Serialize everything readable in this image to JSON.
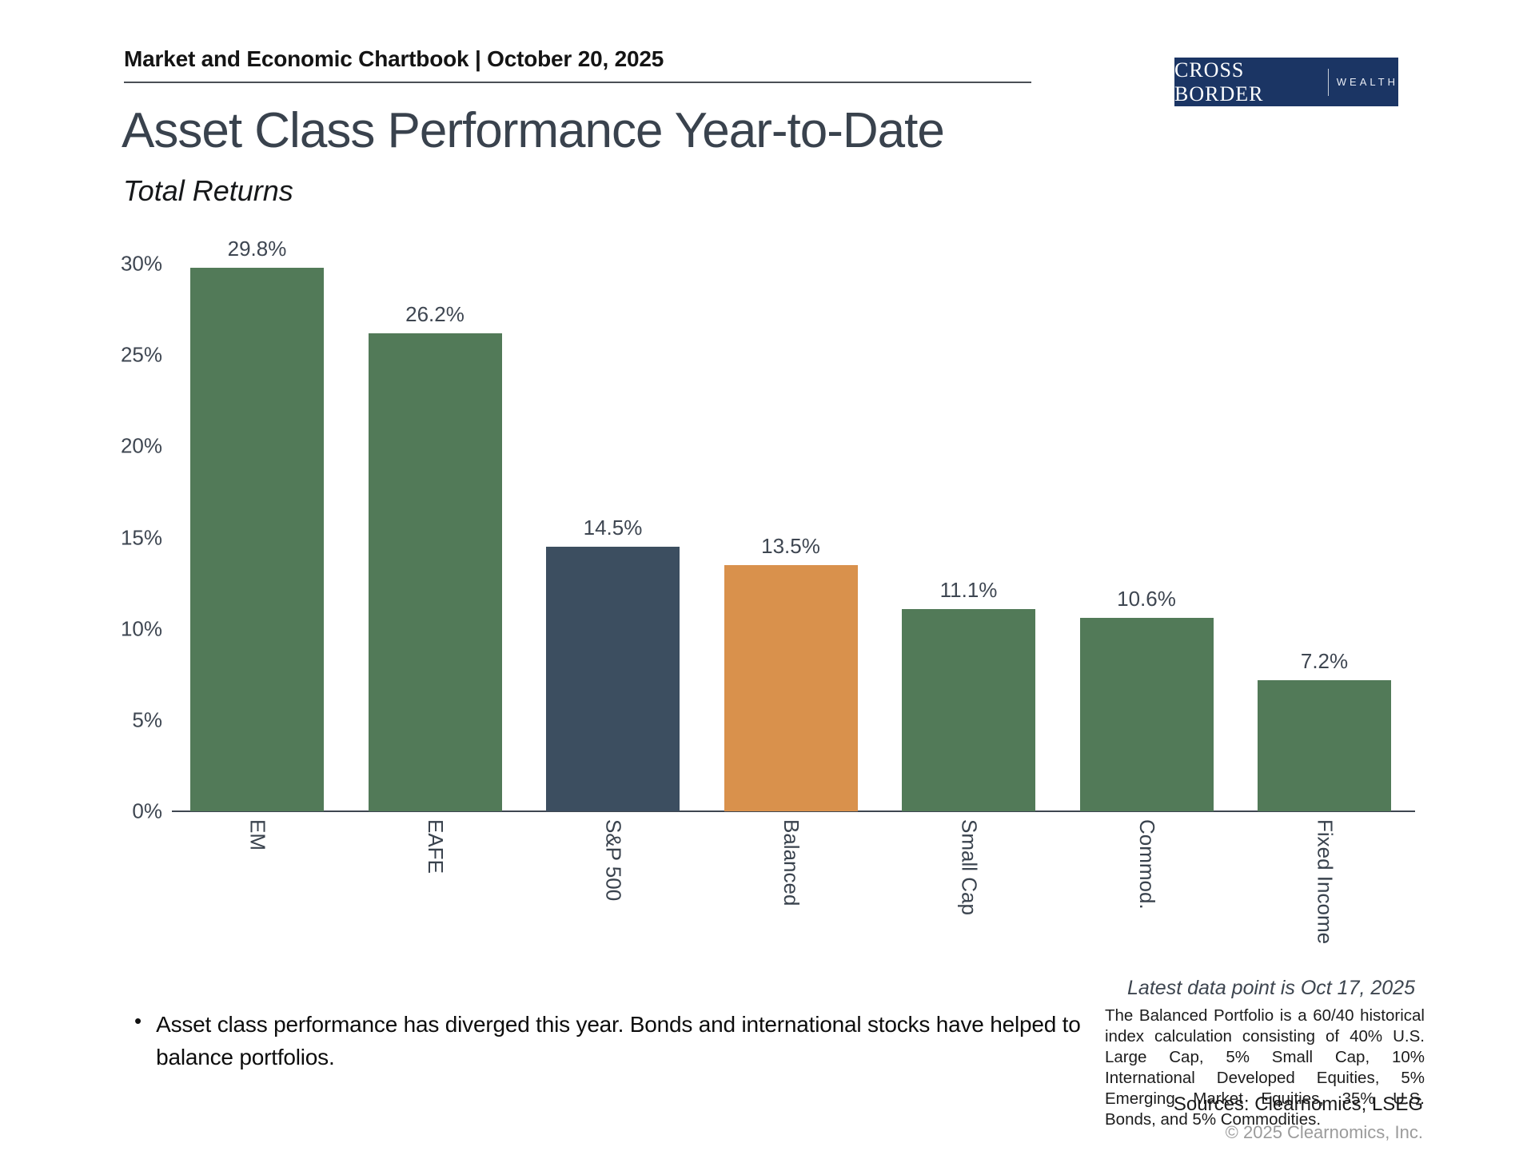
{
  "header": {
    "title": "Market and Economic Chartbook | October 20, 2025"
  },
  "logo": {
    "primary": "CROSS BORDER",
    "secondary": "WEALTH",
    "bg_color": "#1b3564"
  },
  "page": {
    "title": "Asset Class Performance Year-to-Date",
    "subtitle": "Total Returns"
  },
  "chart_data": {
    "type": "bar",
    "title": "Asset Class Performance Year-to-Date",
    "subtitle": "Total Returns",
    "categories": [
      "EM",
      "EAFE",
      "S&P 500",
      "Balanced",
      "Small Cap",
      "Commod.",
      "Fixed Income"
    ],
    "values": [
      29.8,
      26.2,
      14.5,
      13.5,
      11.1,
      10.6,
      7.2
    ],
    "value_labels": [
      "29.8%",
      "26.2%",
      "14.5%",
      "13.5%",
      "11.1%",
      "10.6%",
      "7.2%"
    ],
    "bar_colors": [
      "#527a58",
      "#527a58",
      "#3c4e60",
      "#d9914c",
      "#527a58",
      "#527a58",
      "#527a58"
    ],
    "ylim": [
      0,
      30
    ],
    "ytick_labels": [
      "0%",
      "5%",
      "10%",
      "15%",
      "20%",
      "25%",
      "30%"
    ],
    "grid": false,
    "legend": "none",
    "note": "Latest data point is Oct 17, 2025"
  },
  "footer": {
    "bullet": "Asset class performance has diverged this year. Bonds and international stocks have helped to balance portfolios.",
    "footnote": "The Balanced Portfolio is a 60/40 historical index calculation consisting of 40% U.S. Large Cap, 5% Small Cap, 10% International Developed Equities, 5% Emerging Market Equities, 35% U.S. Bonds, and 5% Commodities.",
    "sources": "Sources: Clearnomics, LSEG",
    "copyright": "© 2025 Clearnomics, Inc."
  }
}
